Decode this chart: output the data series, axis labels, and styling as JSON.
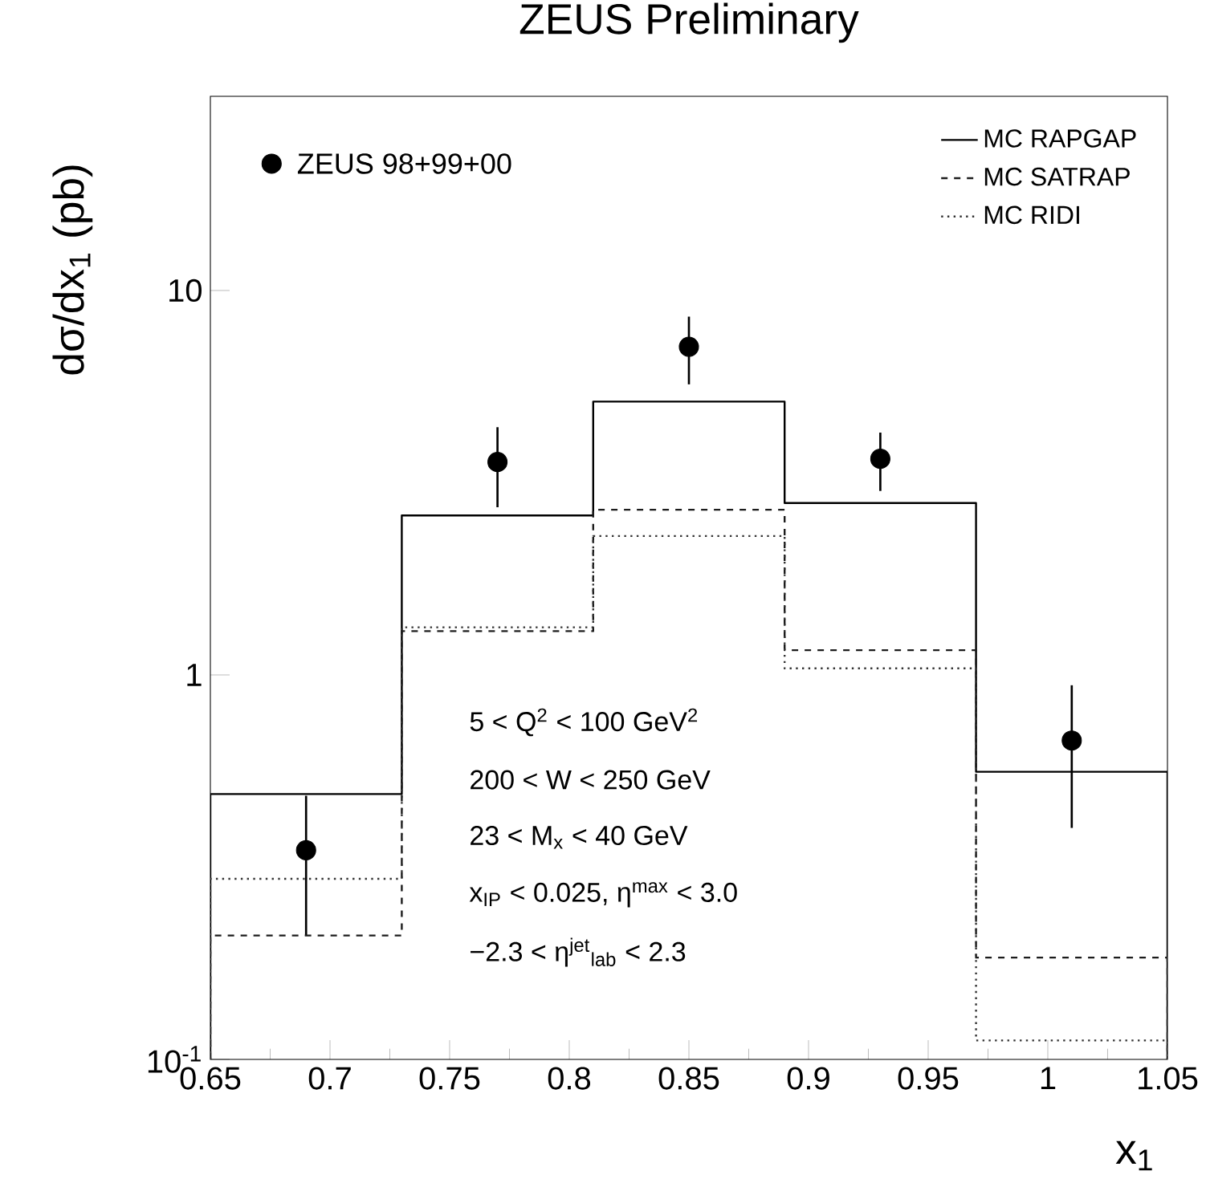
{
  "chart_data": {
    "type": "histogram",
    "title": "ZEUS Preliminary",
    "xlabel": "x$_{1}$",
    "ylabel": "dσ/dx$_{1}$ (pb)",
    "bins": [
      0.65,
      0.73,
      0.81,
      0.89,
      0.97,
      1.05
    ],
    "series": [
      {
        "name": "ZEUS 98+99+00",
        "type": "scatter",
        "color": "#000000",
        "marker": "circle",
        "x": [
          0.69,
          0.77,
          0.85,
          0.93,
          1.01
        ],
        "values": [
          0.35,
          3.58,
          7.14,
          3.65,
          0.675
        ],
        "errors": [
          [
            0.21,
            0.485
          ],
          [
            2.73,
            4.41
          ],
          [
            5.7,
            8.55
          ],
          [
            3.01,
            4.27
          ],
          [
            0.4,
            0.94
          ]
        ]
      },
      {
        "name": "MC RAPGAP",
        "color": "#000000",
        "line_style": "solid",
        "values": [
          0.49,
          2.6,
          5.14,
          2.8,
          0.56
        ]
      },
      {
        "name": "MC SATRAP",
        "color": "#1c1c1c",
        "line_style": "dashed",
        "values": [
          0.21,
          1.3,
          2.69,
          1.16,
          0.184
        ]
      },
      {
        "name": "MC RIDI",
        "color": "#333333",
        "line_style": "dotted",
        "values": [
          0.295,
          1.33,
          2.3,
          1.04,
          0.112
        ]
      }
    ],
    "xlim": [
      0.65,
      1.05
    ],
    "ylim": [
      0.1,
      32
    ],
    "xticks": [
      0.65,
      0.7,
      0.75,
      0.8,
      0.85,
      0.9,
      0.95,
      1,
      1.05
    ],
    "yticks": [
      {
        "value": 0.1,
        "label": "10$^{-1}$"
      },
      1,
      10
    ],
    "log": "y",
    "legend": "top right",
    "annotations": [
      "5 < Q$^{2}$ < 100 GeV$^{2}$",
      "200 < W < 250 GeV",
      "23 < M$_{x}$ < 40 GeV",
      "x$_{IP}$ < 0.025,  η$^{max}$ < 3.0",
      "−2.3 < η$^{jet}$$_{lab}$ < 2.3"
    ]
  }
}
